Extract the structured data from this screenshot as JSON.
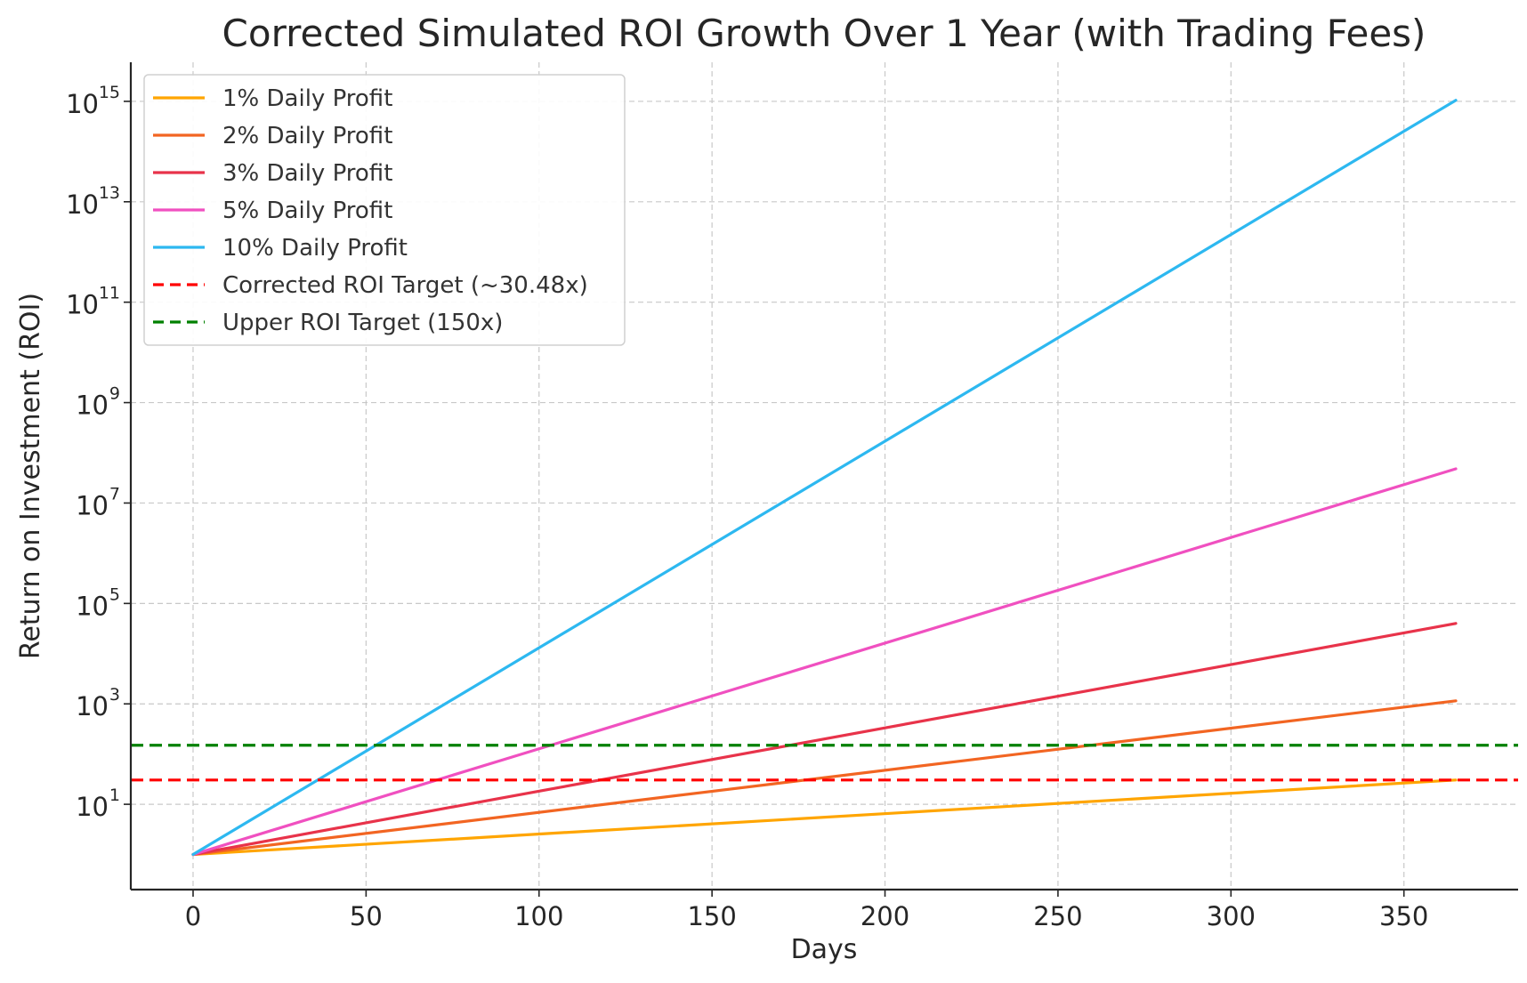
{
  "chart_data": {
    "type": "line",
    "title": "Corrected Simulated ROI Growth Over 1 Year (with Trading Fees)",
    "xlabel": "Days",
    "ylabel": "Return on Investment (ROI)",
    "y_scale": "log",
    "xlim": [
      -18,
      383
    ],
    "ylim": [
      0.2,
      6000000000000000.0
    ],
    "x_ticks": [
      0,
      50,
      100,
      150,
      200,
      250,
      300,
      350
    ],
    "y_ticks": [
      {
        "base": "10",
        "exponent": "1",
        "value": 10
      },
      {
        "base": "10",
        "exponent": "3",
        "value": 1000
      },
      {
        "base": "10",
        "exponent": "5",
        "value": 100000
      },
      {
        "base": "10",
        "exponent": "7",
        "value": 10000000
      },
      {
        "base": "10",
        "exponent": "9",
        "value": 1000000000
      },
      {
        "base": "10",
        "exponent": "11",
        "value": 100000000000
      },
      {
        "base": "10",
        "exponent": "13",
        "value": 10000000000000
      },
      {
        "base": "10",
        "exponent": "15",
        "value": 1000000000000000
      }
    ],
    "grid": true,
    "legend_position": "top-left",
    "series": [
      {
        "name": "1% Daily Profit",
        "color": "#FFA500",
        "style": "solid",
        "x": [
          0,
          365
        ],
        "y": [
          1,
          30.5
        ]
      },
      {
        "name": "2% Daily Profit",
        "color": "#F26522",
        "style": "solid",
        "x": [
          0,
          365
        ],
        "y": [
          1,
          1150
        ]
      },
      {
        "name": "3% Daily Profit",
        "color": "#E8334A",
        "style": "solid",
        "x": [
          0,
          365
        ],
        "y": [
          1,
          40000
        ]
      },
      {
        "name": "5% Daily Profit",
        "color": "#F050C0",
        "style": "solid",
        "x": [
          0,
          365
        ],
        "y": [
          1,
          48000000
        ]
      },
      {
        "name": "10% Daily Profit",
        "color": "#2DB8F0",
        "style": "solid",
        "x": [
          0,
          365
        ],
        "y": [
          1,
          1050000000000000.0
        ]
      },
      {
        "name": "Corrected ROI Target (~30.48x)",
        "color": "#FF0000",
        "style": "dashed",
        "horizontal": true,
        "y_value": 30.48
      },
      {
        "name": "Upper ROI Target (150x)",
        "color": "#008000",
        "style": "dashed",
        "horizontal": true,
        "y_value": 150
      }
    ]
  }
}
